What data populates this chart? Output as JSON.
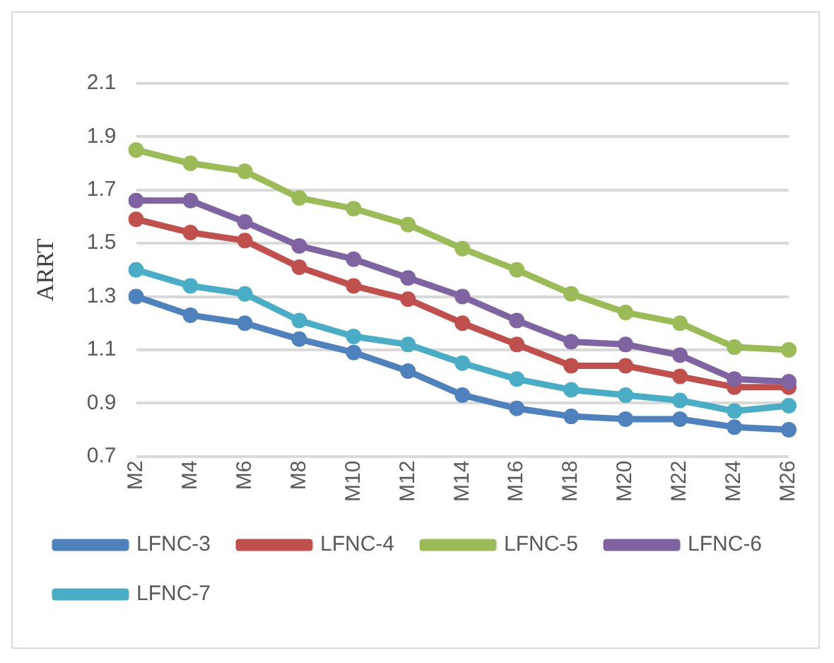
{
  "chart_data": {
    "type": "line",
    "ylabel": "ARRT",
    "categories": [
      "M2",
      "M4",
      "M6",
      "M8",
      "M10",
      "M12",
      "M14",
      "M16",
      "M18",
      "M20",
      "M22",
      "M24",
      "M26"
    ],
    "series": [
      {
        "name": "LFNC-3",
        "color": "#4f81bd",
        "values": [
          1.3,
          1.23,
          1.2,
          1.14,
          1.09,
          1.02,
          0.93,
          0.88,
          0.85,
          0.84,
          0.84,
          0.81,
          0.8
        ]
      },
      {
        "name": "LFNC-4",
        "color": "#c0504d",
        "values": [
          1.59,
          1.54,
          1.51,
          1.41,
          1.34,
          1.29,
          1.2,
          1.12,
          1.04,
          1.04,
          1.0,
          0.96,
          0.96
        ]
      },
      {
        "name": "LFNC-5",
        "color": "#9bbb59",
        "values": [
          1.85,
          1.8,
          1.77,
          1.67,
          1.63,
          1.57,
          1.48,
          1.4,
          1.31,
          1.24,
          1.2,
          1.11,
          1.1
        ]
      },
      {
        "name": "LFNC-6",
        "color": "#8064a2",
        "values": [
          1.66,
          1.66,
          1.58,
          1.49,
          1.44,
          1.37,
          1.3,
          1.21,
          1.13,
          1.12,
          1.08,
          0.99,
          0.98
        ]
      },
      {
        "name": "LFNC-7",
        "color": "#4bacc6",
        "values": [
          1.4,
          1.34,
          1.31,
          1.21,
          1.15,
          1.12,
          1.05,
          0.99,
          0.95,
          0.93,
          0.91,
          0.87,
          0.89
        ]
      }
    ],
    "ylim": [
      0.7,
      2.1
    ],
    "yticks": [
      {
        "value": 0.7,
        "label": "0.7"
      },
      {
        "value": 0.9,
        "label": "0.9"
      },
      {
        "value": 1.1,
        "label": "1.1"
      },
      {
        "value": 1.3,
        "label": "1.3"
      },
      {
        "value": 1.5,
        "label": "1.5"
      },
      {
        "value": 1.7,
        "label": "1.7"
      },
      {
        "value": 1.9,
        "label": "1.9"
      },
      {
        "value": 2.1,
        "label": "2.1"
      }
    ],
    "grid": "y",
    "legend": "bottom",
    "marker": "circle",
    "line_style": "solid"
  }
}
